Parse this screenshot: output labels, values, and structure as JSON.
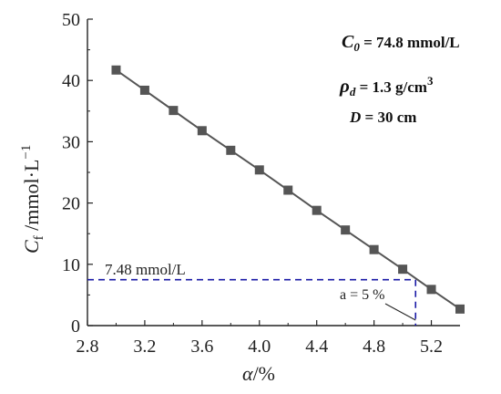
{
  "chart_data": {
    "type": "line",
    "x": [
      3.0,
      3.2,
      3.4,
      3.6,
      3.8,
      4.0,
      4.2,
      4.4,
      4.6,
      4.8,
      5.0,
      5.2,
      5.4
    ],
    "series": [
      {
        "values": [
          41.7,
          38.4,
          35.1,
          31.8,
          28.6,
          25.4,
          22.1,
          18.8,
          15.6,
          12.4,
          9.2,
          5.9,
          2.7
        ]
      }
    ],
    "xlim": [
      2.8,
      5.4
    ],
    "ylim": [
      0,
      50
    ],
    "xticks": [
      "2.8",
      "3.2",
      "3.6",
      "4.0",
      "4.4",
      "4.8",
      "5.2"
    ],
    "yticks": [
      "0",
      "10",
      "20",
      "30",
      "40",
      "50"
    ],
    "xlabel": {
      "main": "α",
      "rest": "/%"
    },
    "ylabel": {
      "main": "C",
      "sub": "f",
      "rest": " /mmol·L",
      "sup": "−1"
    },
    "conditions": {
      "c0": {
        "sym": "C",
        "sub": "0",
        "rest": " = 74.8 mmol/L"
      },
      "rho": {
        "sym": "ρ",
        "sub": "d",
        "rest": "  = 1.3 g/cm",
        "sup": "3"
      },
      "depth": {
        "sym": "D",
        "rest": " = 30 cm"
      }
    },
    "reference": {
      "y": 7.48,
      "x": 5.09,
      "label": "7.48 mmol/L",
      "annotation": "a = 5 %"
    },
    "colors": {
      "series": "#555555",
      "marker": "#555555",
      "reference": "#1a1aa6",
      "axis": "#222222"
    }
  }
}
